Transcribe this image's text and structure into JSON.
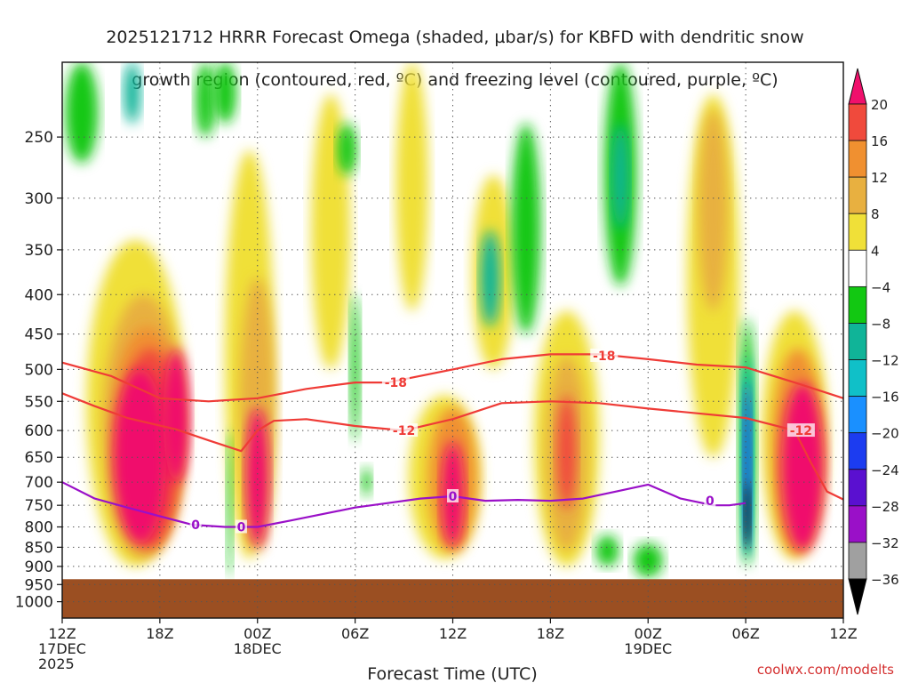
{
  "title": {
    "line1": "2025121712 HRRR Forecast Omega (shaded, µbar/s) for KBFD with dendritic snow",
    "line2": "growth region (contoured, red, ºC) and freezing level (contoured, purple, ºC)"
  },
  "credit": "coolwx.com/modelts",
  "chart_data": {
    "type": "heatmap",
    "title": "2025121712 HRRR Forecast Omega (shaded, µbar/s) for KBFD with dendritic snow growth region (contoured, red, ºC) and freezing level (contoured, purple, ºC)",
    "xlabel": "Forecast Time (UTC)",
    "ylabel": "",
    "x_ticks": [
      {
        "hour": 0,
        "lines": [
          "12Z",
          "17DEC",
          "2025"
        ]
      },
      {
        "hour": 6,
        "lines": [
          "18Z"
        ]
      },
      {
        "hour": 12,
        "lines": [
          "00Z",
          "18DEC"
        ]
      },
      {
        "hour": 18,
        "lines": [
          "06Z"
        ]
      },
      {
        "hour": 24,
        "lines": [
          "12Z"
        ]
      },
      {
        "hour": 30,
        "lines": [
          "18Z"
        ]
      },
      {
        "hour": 36,
        "lines": [
          "00Z",
          "19DEC"
        ]
      },
      {
        "hour": 42,
        "lines": [
          "06Z"
        ]
      },
      {
        "hour": 48,
        "lines": [
          "12Z"
        ]
      }
    ],
    "xlim": [
      0,
      48
    ],
    "y_ticks": [
      250,
      300,
      350,
      400,
      450,
      500,
      550,
      600,
      650,
      700,
      750,
      800,
      850,
      900,
      950,
      1000
    ],
    "ylim": [
      1050,
      200
    ],
    "y_scale": "log",
    "grid": true,
    "colorbar": {
      "levels": [
        -36,
        -32,
        -28,
        -24,
        -20,
        -16,
        -12,
        -8,
        -4,
        4,
        8,
        12,
        16,
        20
      ],
      "labels": [
        "20",
        "16",
        "12",
        "8",
        "4",
        "−4",
        "−8",
        "−12",
        "−16",
        "−20",
        "−24",
        "−28",
        "−32",
        "−36"
      ],
      "colors": [
        "#000000",
        "#a0a0a0",
        "#9a10c8",
        "#5a10d0",
        "#1c3cf0",
        "#1a90ff",
        "#10c0c8",
        "#10b498",
        "#12c812",
        "#ffffff",
        "#f0e038",
        "#e8b040",
        "#f09030",
        "#f04a3c",
        "#f0106c"
      ],
      "extend": "both"
    },
    "ground": {
      "color": "#9b4f22",
      "surface_pressure": 935
    },
    "series": [
      {
        "name": "-18",
        "color": "#ef3b36",
        "x": [
          0,
          3,
          6,
          9,
          12,
          15,
          18,
          20,
          24,
          27,
          30,
          33,
          36,
          39,
          42,
          45,
          48
        ],
        "y": [
          490,
          510,
          545,
          550,
          545,
          530,
          520,
          520,
          500,
          485,
          478,
          478,
          485,
          493,
          497,
          520,
          545
        ]
      },
      {
        "name": "-12",
        "color": "#ef3b36",
        "x": [
          0,
          2,
          4,
          7,
          9,
          11,
          12,
          13,
          15,
          18,
          21,
          24,
          27,
          30,
          33,
          36,
          39,
          42,
          45,
          46,
          47,
          48
        ],
        "y": [
          537,
          558,
          578,
          598,
          618,
          638,
          600,
          583,
          580,
          592,
          600,
          580,
          553,
          550,
          553,
          562,
          570,
          578,
          600,
          660,
          720,
          737
        ]
      },
      {
        "name": "0",
        "color": "#9a10c8",
        "x": [
          0,
          2,
          4,
          6,
          8,
          10,
          12,
          14,
          16,
          18,
          20,
          22,
          24,
          26,
          28,
          30,
          32,
          34,
          36,
          38,
          40,
          41,
          42
        ],
        "y": [
          700,
          735,
          755,
          775,
          795,
          800,
          800,
          785,
          770,
          755,
          745,
          735,
          730,
          740,
          738,
          740,
          735,
          720,
          705,
          735,
          750,
          750,
          745
        ]
      }
    ],
    "contour_labels": [
      {
        "text": "-18",
        "x": 20.5,
        "y": 520
      },
      {
        "text": "-18",
        "x": 33.3,
        "y": 480
      },
      {
        "text": "-12",
        "x": 21.0,
        "y": 600
      },
      {
        "text": "-12",
        "x": 45.4,
        "y": 600
      },
      {
        "text": "0",
        "x": 8.2,
        "y": 795
      },
      {
        "text": "0",
        "x": 11.0,
        "y": 800
      },
      {
        "text": "0",
        "x": 24.0,
        "y": 730
      },
      {
        "text": "0",
        "x": 39.8,
        "y": 740
      }
    ]
  }
}
